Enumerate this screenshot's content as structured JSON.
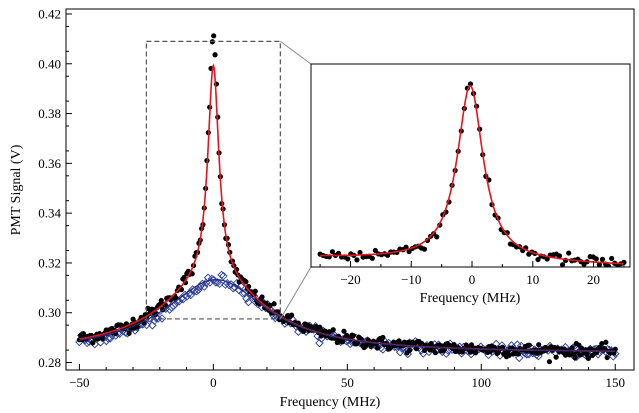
{
  "chart_data": [
    {
      "type": "scatter",
      "title": "",
      "xlabel": "Frequency (MHz)",
      "ylabel": "PMT Signal (V)",
      "xlim": [
        -55,
        157
      ],
      "ylim": [
        0.277,
        0.422
      ],
      "x_ticks": [
        -50,
        0,
        50,
        100,
        150
      ],
      "x_tick_labels": [
        "−50",
        "0",
        "50",
        "100",
        "150"
      ],
      "y_ticks": [
        0.28,
        0.3,
        0.32,
        0.34,
        0.36,
        0.38,
        0.4,
        0.42
      ],
      "y_tick_labels": [
        "0.28",
        "0.30",
        "0.32",
        "0.34",
        "0.36",
        "0.38",
        "0.40",
        "0.42"
      ],
      "grid": false,
      "legend": "none",
      "zoom_box": {
        "x": [
          -25,
          25
        ],
        "y": [
          0.2975,
          0.409
        ]
      },
      "series": [
        {
          "kind": "scatter-filled-circles",
          "color": "#000000",
          "x_range": [
            -50,
            150
          ],
          "n_points": 400,
          "baseline": 0.2838,
          "narrow_peak": {
            "center": 0,
            "amplitude": 0.099,
            "fwhm": 4.5
          },
          "broad_peak": {
            "center": 0,
            "amplitude": 0.0295,
            "fwhm": 48
          },
          "noise": 0.0013
        },
        {
          "kind": "scatter-open-diamonds",
          "color": "#2a3f9a",
          "x_range": [
            -50,
            150
          ],
          "n_points": 280,
          "baseline": 0.2835,
          "broad_peak": {
            "center": 2,
            "amplitude": 0.0295,
            "fwhm": 46
          },
          "noise": 0.0011
        },
        {
          "kind": "fit-line",
          "color": "#e0151e",
          "baseline": 0.2838,
          "narrow_peak": {
            "center": 0,
            "amplitude": 0.0865,
            "fwhm": 5.0
          },
          "broad_peak": {
            "center": 0,
            "amplitude": 0.029,
            "fwhm": 48
          }
        },
        {
          "kind": "fit-line",
          "color": "#2a2d7a",
          "baseline": 0.2838,
          "broad_peak": {
            "center": 1,
            "amplitude": 0.0295,
            "fwhm": 47
          }
        }
      ]
    },
    {
      "type": "scatter",
      "title": "",
      "xlabel": "Frequency (MHz)",
      "ylabel": "",
      "xlim": [
        -26.5,
        26
      ],
      "ylim": [
        0.2975,
        0.409
      ],
      "x_ticks": [
        -20,
        -10,
        0,
        10,
        20
      ],
      "x_tick_labels": [
        "−20",
        "−10",
        "0",
        "10",
        "20"
      ],
      "grid": false,
      "legend": "none",
      "series": [
        {
          "kind": "scatter-filled-circles",
          "color": "#000000",
          "x_range": [
            -25,
            25
          ],
          "n_points": 100,
          "baseline": 0.3005,
          "peak": {
            "center": -0.3,
            "amplitude": 0.0985,
            "fwhm": 5.0
          },
          "slope": -9e-05,
          "noise": 0.0018
        },
        {
          "kind": "fit-line",
          "color": "#e0151e",
          "baseline": 0.3005,
          "peak": {
            "center": -0.3,
            "amplitude": 0.0965,
            "fwhm": 5.2
          },
          "slope": -9e-05
        }
      ]
    }
  ]
}
